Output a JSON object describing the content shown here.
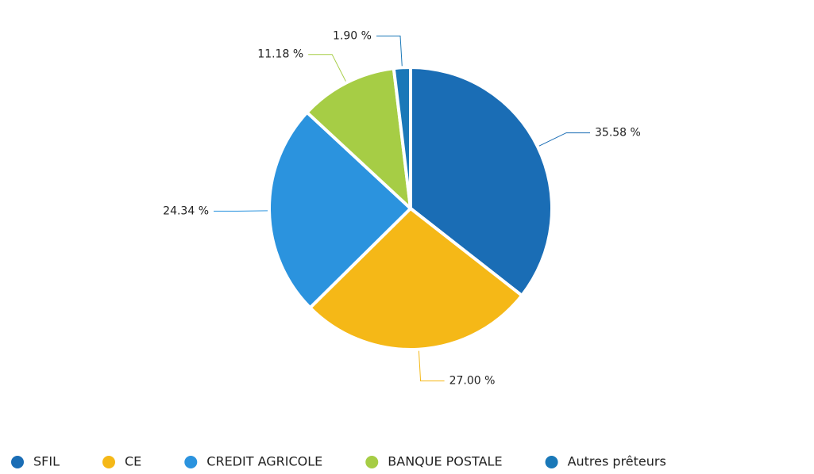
{
  "chart_data": {
    "type": "pie",
    "categories": [
      "SFIL",
      "CE",
      "CREDIT AGRICOLE",
      "BANQUE POSTALE",
      "Autres prêteurs"
    ],
    "values": [
      35.58,
      27.0,
      24.34,
      11.18,
      1.9
    ],
    "value_labels": [
      "35.58 %",
      "27.00 %",
      "24.34 %",
      "11.18 %",
      "1.90 %"
    ],
    "colors": [
      "#1a6db5",
      "#f5b817",
      "#2b93de",
      "#a6cd45",
      "#1a78b8"
    ],
    "legend": "bottom"
  }
}
